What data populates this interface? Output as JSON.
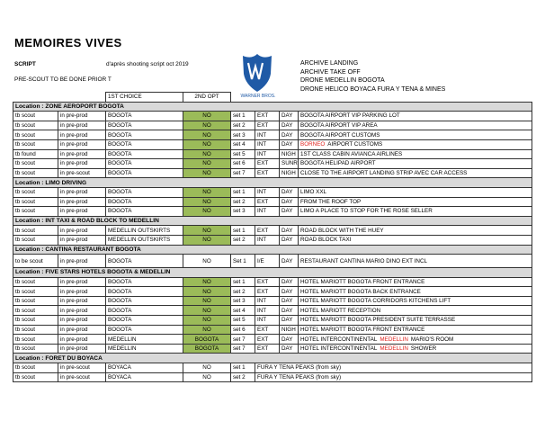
{
  "header": {
    "title": "MEMOIRES VIVES",
    "script_label": "SCRIPT",
    "script_note": "d'après shooting script oct 2019",
    "prescout": "PRE-SCOUT TO BE DONE PRIOR T",
    "logo_text": "WARNER BROS.",
    "notes": [
      "ARCHIVE LANDING",
      "ARCHIVE TAKE OFF",
      "DRONE MEDELLIN BOGOTA",
      "DRONE HELICO BOYACA FURA Y TENA & MINES"
    ]
  },
  "table": {
    "columns": [
      "1ST CHOICE",
      "2ND OPT"
    ],
    "opt_color": "#9bbb59",
    "highlight_color": "#e0201b",
    "sections": [
      {
        "title": "Location : ZONE AEROPORT BOGOTA",
        "rows": [
          {
            "status": "tb scout",
            "stage": "in pre-prod",
            "choice": "BOGOTA",
            "opt2": "NO",
            "opt_fill": true,
            "set": "set 1",
            "ie": "EXT",
            "time": "DAY",
            "desc": [
              {
                "text": "BOGOTA AIRPORT VIP PARKING LOT"
              }
            ]
          },
          {
            "status": "tb scout",
            "stage": "in pre-prod",
            "choice": "BOGOTA",
            "opt2": "NO",
            "opt_fill": true,
            "set": "set 2",
            "ie": "EXT",
            "time": "DAY",
            "desc": [
              {
                "text": "BOGOTA AIRPORT VIP AREA"
              }
            ]
          },
          {
            "status": "tb scout",
            "stage": "in pre-prod",
            "choice": "BOGOTA",
            "opt2": "NO",
            "opt_fill": true,
            "set": "set 3",
            "ie": "INT",
            "time": "DAY",
            "desc": [
              {
                "text": "BOGOTA AIRPORT CUSTOMS"
              }
            ]
          },
          {
            "status": "tb scout",
            "stage": "in pre-prod",
            "choice": "BOGOTA",
            "opt2": "NO",
            "opt_fill": true,
            "set": "set 4",
            "ie": "INT",
            "time": "DAY",
            "desc": [
              {
                "text": "BORNEO",
                "highlight": true
              },
              {
                "text": "AIRPORT CUSTOMS"
              }
            ]
          },
          {
            "status": "tb found",
            "stage": "in pre-prod",
            "choice": "BOGOTA",
            "opt2": "NO",
            "opt_fill": true,
            "set": "set 5",
            "ie": "INT",
            "time": "NIGH",
            "desc": [
              {
                "text": "1ST CLASS CABIN AVIANCA AIRLINES"
              }
            ]
          },
          {
            "status": "tb scout",
            "stage": "in pre-prod",
            "choice": "BOGOTA",
            "opt2": "NO",
            "opt_fill": true,
            "set": "set 6",
            "ie": "EXT",
            "time": "SUNR",
            "desc": [
              {
                "text": "BOGOTA HELIPAD AIRPORT"
              }
            ]
          },
          {
            "status": "tb scout",
            "stage": "in pre-scout",
            "choice": "BOGOTA",
            "opt2": "NO",
            "opt_fill": true,
            "set": "set 7",
            "ie": "EXT",
            "time": "NIGH",
            "desc": [
              {
                "text": "CLOSE TO THE AIRPORT LANDING STRIP AVEC CAR ACCESS"
              }
            ]
          }
        ]
      },
      {
        "title": "Location : LIMO DRIVING",
        "rows": [
          {
            "status": "tb scout",
            "stage": "in pre-prod",
            "choice": "BOGOTA",
            "opt2": "NO",
            "opt_fill": true,
            "set": "set 1",
            "ie": "INT",
            "time": "DAY",
            "desc": [
              {
                "text": "LIMO XXL"
              }
            ]
          },
          {
            "status": "tb scout",
            "stage": "in pre-prod",
            "choice": "BOGOTA",
            "opt2": "NO",
            "opt_fill": true,
            "set": "set 2",
            "ie": "EXT",
            "time": "DAY",
            "desc": [
              {
                "text": "FROM THE ROOF TOP"
              }
            ]
          },
          {
            "status": "tb scout",
            "stage": "in pre-prod",
            "choice": "BOGOTA",
            "opt2": "NO",
            "opt_fill": true,
            "set": "set 3",
            "ie": "INT",
            "time": "DAY",
            "desc": [
              {
                "text": "LIMO A PLACE TO STOP FOR THE ROSE SELLER"
              }
            ]
          }
        ]
      },
      {
        "title": "Location : INT TAXI & ROAD BLOCK TO MEDELLIN",
        "rows": [
          {
            "status": "tb scout",
            "stage": "in pre-prod",
            "choice": "MEDELLIN OUTSKIRTS",
            "opt2": "NO",
            "opt_fill": true,
            "set": "set 1",
            "ie": "EXT",
            "time": "DAY",
            "desc": [
              {
                "text": "ROAD BLOCK WITH THE HUEY"
              }
            ]
          },
          {
            "status": "tb scout",
            "stage": "in pre-prod",
            "choice": "MEDELLIN OUTSKIRTS",
            "opt2": "NO",
            "opt_fill": true,
            "set": "set 2",
            "ie": "INT",
            "time": "DAY",
            "desc": [
              {
                "text": "ROAD BLOCK TAXI"
              }
            ]
          }
        ]
      },
      {
        "title": "Location : CANTINA RESTAURANT BOGOTA",
        "rows": [
          {
            "status": "to be scout",
            "stage": "in pre-prod",
            "choice": "BOGOTA",
            "opt2": "NO",
            "opt_fill": false,
            "tall": true,
            "set": "Set 1",
            "ie": "I/E",
            "time": "DAY",
            "desc": [
              {
                "text": "RESTAURANT CANTINA MARIO DINO EXT INCL"
              }
            ]
          }
        ]
      },
      {
        "title": "Location : FIVE STARS HOTELS BOGOTA & MEDELLIN",
        "rows": [
          {
            "status": "tb scout",
            "stage": "in pre-prod",
            "choice": "BOGOTA",
            "opt2": "NO",
            "opt_fill": true,
            "set": "set 1",
            "ie": "EXT",
            "time": "DAY",
            "desc": [
              {
                "text": "HOTEL MARIOTT BOGOTA FRONT ENTRANCE"
              }
            ]
          },
          {
            "status": "tb scout",
            "stage": "in pre-prod",
            "choice": "BOGOTA",
            "opt2": "NO",
            "opt_fill": true,
            "set": "set 2",
            "ie": "EXT",
            "time": "DAY",
            "desc": [
              {
                "text": "HOTEL MARIOTT BOGOTA BACK ENTRANCE"
              }
            ]
          },
          {
            "status": "tb scout",
            "stage": "in pre-prod",
            "choice": "BOGOTA",
            "opt2": "NO",
            "opt_fill": true,
            "set": "set 3",
            "ie": "INT",
            "time": "DAY",
            "desc": [
              {
                "text": "HOTEL MARIOTT BOGOTA CORRIDORS KITCHENS LIFT"
              }
            ]
          },
          {
            "status": "tb scout",
            "stage": "in pre-prod",
            "choice": "BOGOTA",
            "opt2": "NO",
            "opt_fill": true,
            "set": "set 4",
            "ie": "INT",
            "time": "DAY",
            "desc": [
              {
                "text": "HOTEL MARIOTT RECEPTION"
              }
            ]
          },
          {
            "status": "tb scout",
            "stage": "in pre-prod",
            "choice": "BOGOTA",
            "opt2": "NO",
            "opt_fill": true,
            "set": "set 5",
            "ie": "INT",
            "time": "DAY",
            "desc": [
              {
                "text": "HOTEL MARIOTT BOGOTA PRESIDENT SUITE TERRASSE"
              }
            ]
          },
          {
            "status": "tb scout",
            "stage": "in pre-prod",
            "choice": "BOGOTA",
            "opt2": "NO",
            "opt_fill": true,
            "set": "set 6",
            "ie": "EXT",
            "time": "NIGH",
            "desc": [
              {
                "text": "HOTEL MARIOTT BOGOTA FRONT ENTRANCE"
              }
            ]
          },
          {
            "status": "tb scout",
            "stage": "in pre-prod",
            "choice": "MEDELLIN",
            "opt2": "BOGOTA",
            "opt_fill": true,
            "set": "set 7",
            "ie": "EXT",
            "time": "DAY",
            "desc": [
              {
                "text": "HOTEL INTERCONTINENTAL"
              },
              {
                "text": "MEDELLIN",
                "highlight": true
              },
              {
                "text": "MARIO'S ROOM"
              }
            ]
          },
          {
            "status": "tb scout",
            "stage": "in pre-prod",
            "choice": "MEDELLIN",
            "opt2": "BOGOTA",
            "opt_fill": true,
            "set": "set 7",
            "ie": "EXT",
            "time": "DAY",
            "desc": [
              {
                "text": "HOTEL INTERCONTINENTAL"
              },
              {
                "text": "MEDELLIN",
                "highlight": true
              },
              {
                "text": "SHOWER"
              }
            ]
          }
        ]
      },
      {
        "title": "Location : FORET DU BOYACA",
        "rows": [
          {
            "status": "tb scout",
            "stage": "in pre-scout",
            "choice": "BOYACA",
            "opt2": "NO",
            "opt_fill": false,
            "set": "set 1",
            "desc": [
              {
                "text": "FURA Y TENA PEAKS (from sky)"
              }
            ]
          },
          {
            "status": "tb scout",
            "stage": "in pre-scout",
            "choice": "BOYACA",
            "opt2": "NO",
            "opt_fill": false,
            "set": "set 2",
            "desc": [
              {
                "text": "FURA Y TENA PEAKS (from sky)"
              }
            ]
          }
        ]
      }
    ]
  }
}
